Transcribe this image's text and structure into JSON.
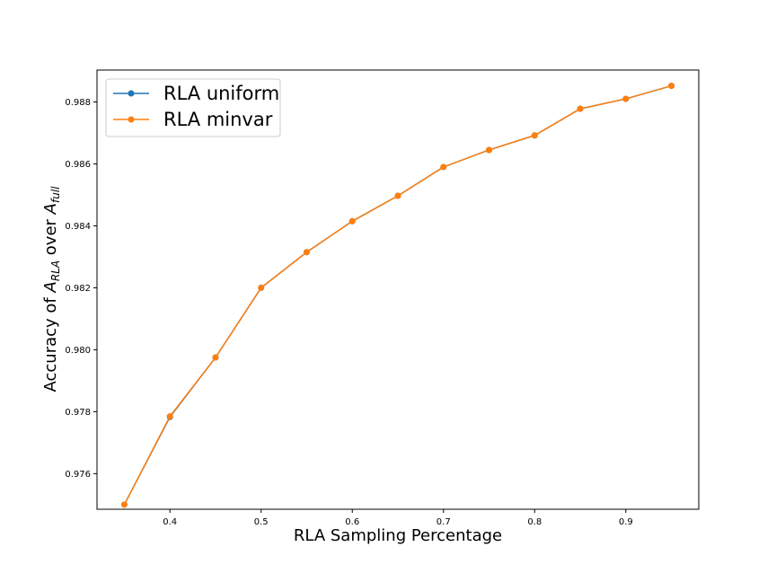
{
  "chart_data": {
    "type": "line",
    "xlabel": "RLA Sampling Percentage",
    "ylabel_parts": {
      "prefix": "Accuracy of ",
      "a1": "A",
      "sub1": "RLA",
      "mid": " over ",
      "a2": "A",
      "sub2": "full"
    },
    "x": [
      0.35,
      0.4,
      0.45,
      0.5,
      0.55,
      0.6,
      0.65,
      0.7,
      0.75,
      0.8,
      0.85,
      0.9,
      0.95
    ],
    "series": [
      {
        "name": "RLA uniform",
        "color": "#1f77b4",
        "values": [
          0.975,
          0.97783,
          0.97975,
          0.982,
          0.98315,
          0.98415,
          0.98497,
          0.9859,
          0.98645,
          0.98692,
          0.98778,
          0.9881,
          0.98852
        ]
      },
      {
        "name": "RLA minvar",
        "color": "#ff7f0e",
        "values": [
          0.975,
          0.97785,
          0.97975,
          0.982,
          0.98315,
          0.98415,
          0.98497,
          0.9859,
          0.98645,
          0.98692,
          0.98778,
          0.9881,
          0.98852
        ]
      }
    ],
    "xticks": [
      "0.4",
      "0.5",
      "0.6",
      "0.7",
      "0.8",
      "0.9"
    ],
    "yticks": [
      "0.976",
      "0.978",
      "0.980",
      "0.982",
      "0.984",
      "0.986",
      "0.988"
    ],
    "xlim": [
      0.32,
      0.98
    ],
    "ylim": [
      0.97485,
      0.98903
    ],
    "legend_position": "upper-left",
    "grid": false
  }
}
